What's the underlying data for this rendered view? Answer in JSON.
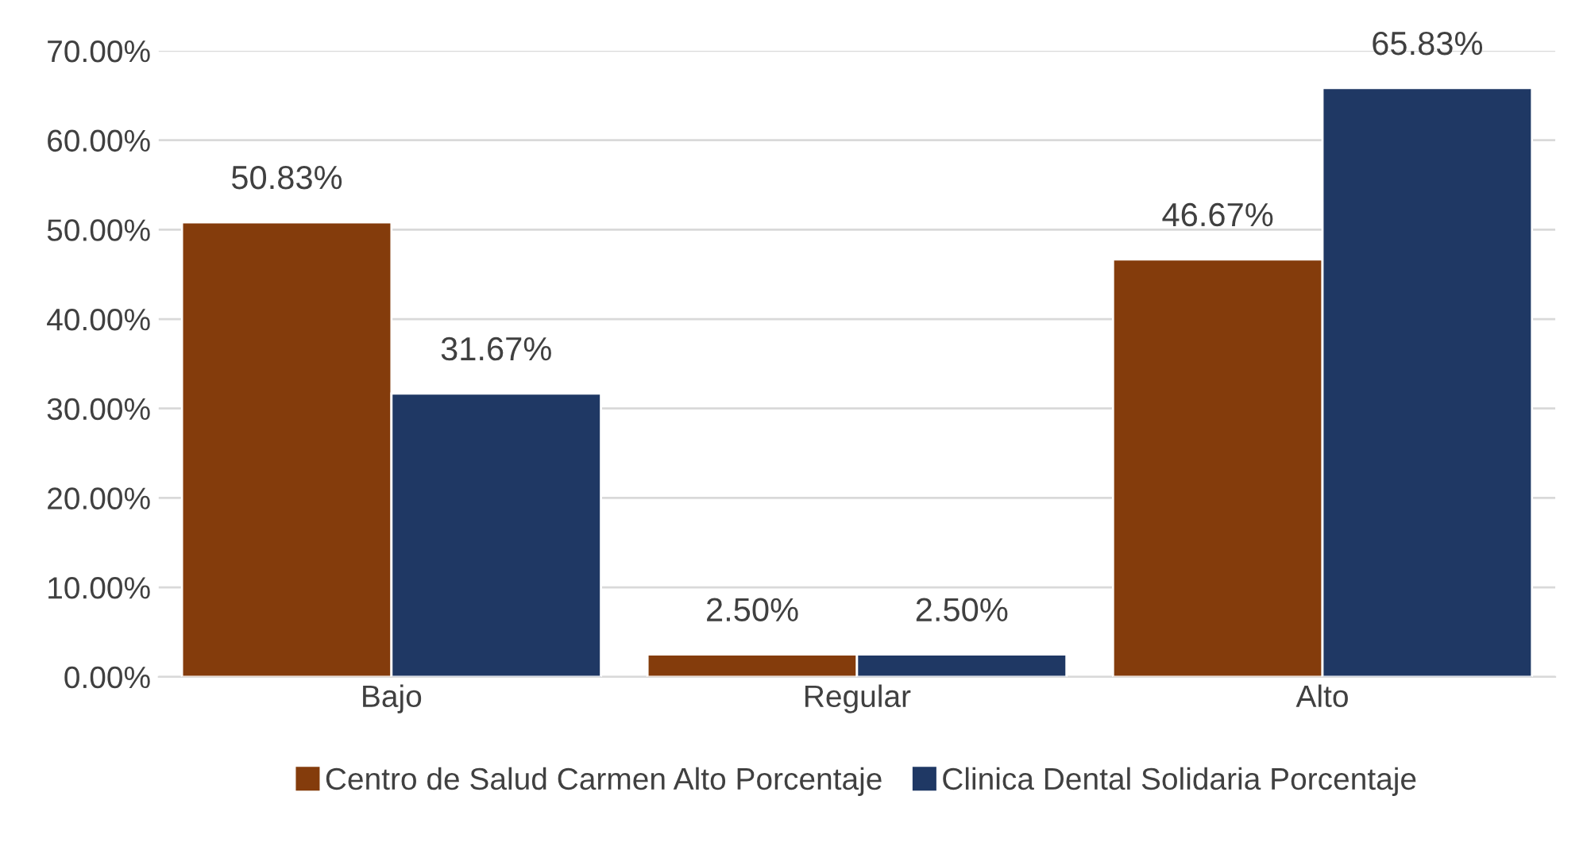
{
  "chart_data": {
    "type": "bar",
    "categories": [
      "Bajo",
      "Regular",
      "Alto"
    ],
    "series": [
      {
        "name": "Centro de Salud Carmen Alto Porcentaje",
        "color": "#843c0c",
        "values": [
          50.83,
          2.5,
          46.67
        ],
        "value_labels": [
          "50.83%",
          "2.50%",
          "46.67%"
        ]
      },
      {
        "name": "Clinica Dental Solidaria Porcentaje",
        "color": "#1f3864",
        "values": [
          31.67,
          2.5,
          65.83
        ],
        "value_labels": [
          "31.67%",
          "2.50%",
          "65.83%"
        ]
      }
    ],
    "ylim": [
      0,
      70
    ],
    "yticks": [
      {
        "value": 0,
        "label": "0.00%"
      },
      {
        "value": 10,
        "label": "10.00%"
      },
      {
        "value": 20,
        "label": "20.00%"
      },
      {
        "value": 30,
        "label": "30.00%"
      },
      {
        "value": 40,
        "label": "40.00%"
      },
      {
        "value": 50,
        "label": "50.00%"
      },
      {
        "value": 60,
        "label": "60.00%"
      },
      {
        "value": 70,
        "label": "70.00%"
      }
    ],
    "grid": "y",
    "legend": "bottom"
  }
}
